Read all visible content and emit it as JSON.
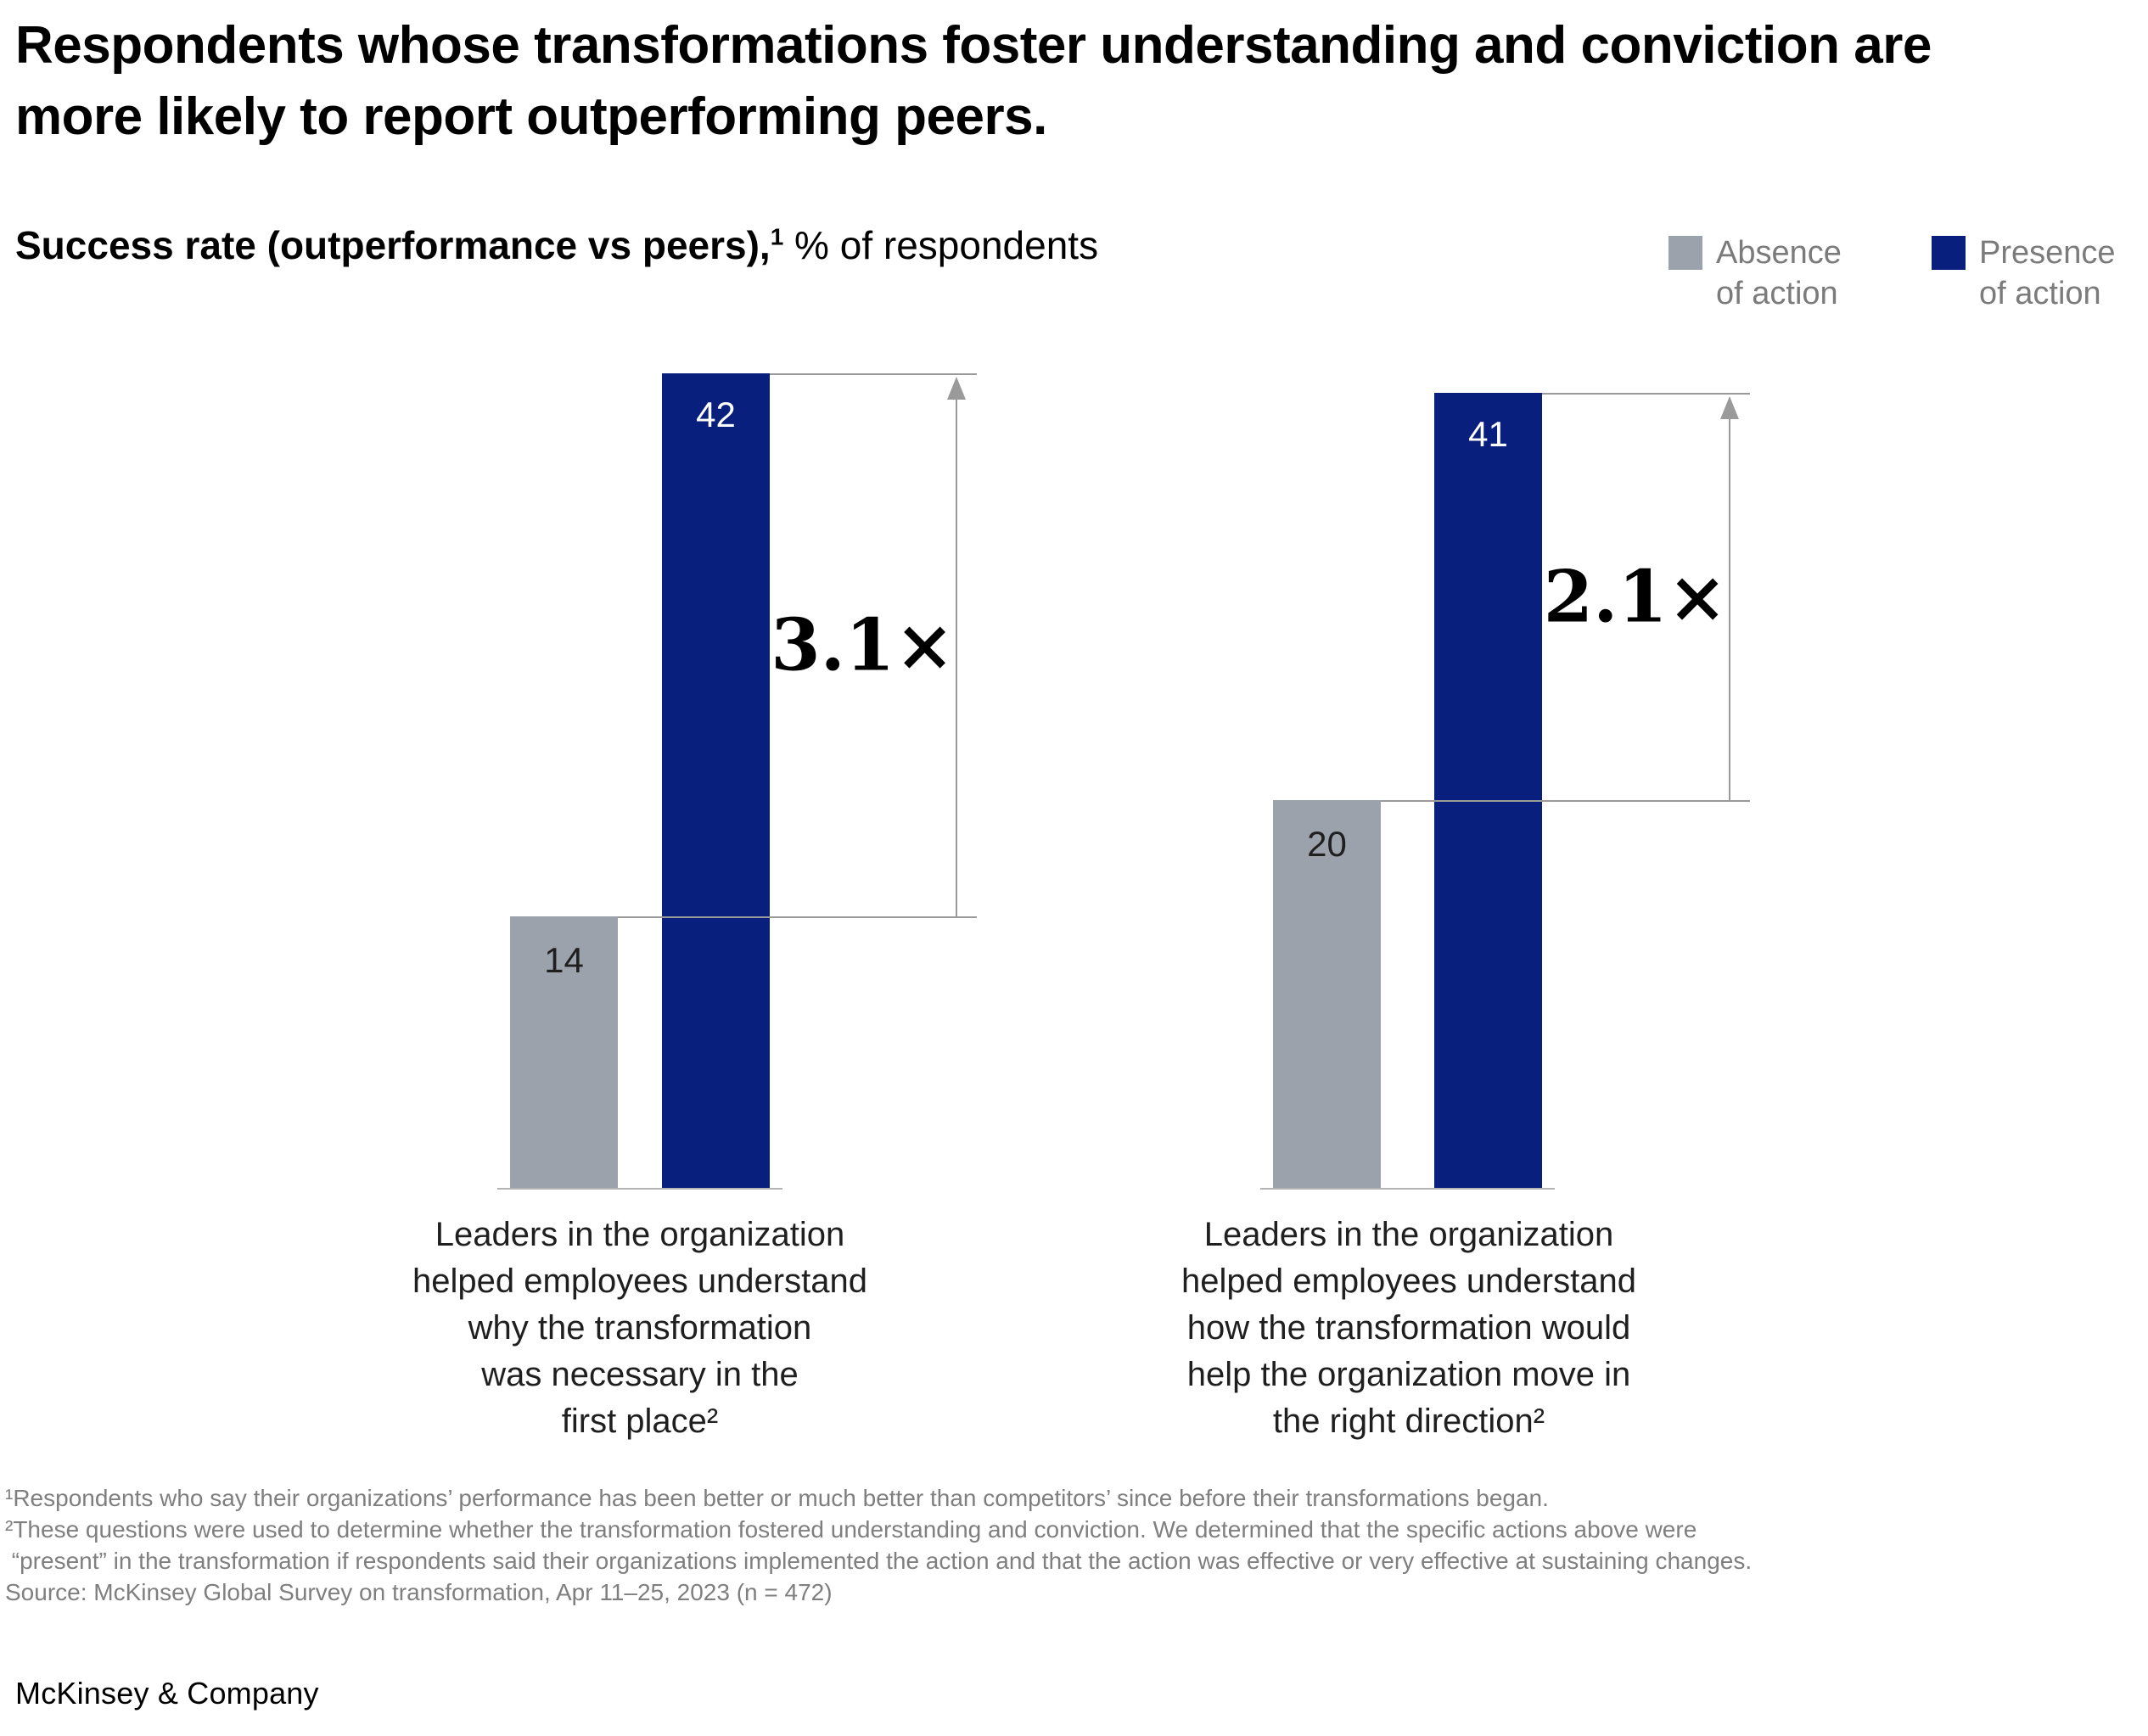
{
  "title": "Respondents whose transformations foster understanding and conviction are\nmore likely to report outperforming peers.",
  "subtitle": {
    "bold": "Success rate (outperformance vs peers),",
    "sup": "1",
    "regular": " % of respondents"
  },
  "legend": [
    {
      "label": "Absence\nof action",
      "color": "#9BA2AB"
    },
    {
      "label": "Presence\nof action",
      "color": "#081F7E"
    }
  ],
  "chart_data": [
    {
      "type": "bar",
      "title": "Success rate (outperformance vs peers), % of respondents",
      "categories": [
        "Absence of action",
        "Presence of action"
      ],
      "values": [
        14,
        42
      ],
      "multiplier": "3.1×",
      "group_label": "Leaders in the organization\nhelped employees understand\nwhy the transformation\nwas necessary in the\nfirst place²"
    },
    {
      "type": "bar",
      "title": "Success rate (outperformance vs peers), % of respondents",
      "categories": [
        "Absence of action",
        "Presence of action"
      ],
      "values": [
        20,
        41
      ],
      "multiplier": "2.1×",
      "group_label": "Leaders in the organization\nhelped employees understand\nhow the transformation would\nhelp the organization move in\nthe right direction²"
    }
  ],
  "footnotes": [
    "¹Respondents who say their organizations’ performance has been better or much better than competitors’ since before their transformations began.",
    "²These questions were used to determine whether the transformation fostered understanding and conviction. We determined that the specific actions above were",
    " “present” in the transformation if respondents said their organizations implemented the action and that the action was effective or very effective at sustaining changes.",
    "Source: McKinsey Global Survey on transformation, Apr 11–25, 2023 (n = 472)"
  ],
  "logo": "McKinsey & Company",
  "colors": {
    "absence_bar": "#9BA2AB",
    "presence_bar": "#081F7E",
    "annotation_line": "#9A9A9A",
    "baseline": "#B3B3B3",
    "secondary_text": "#7B7B7B",
    "title_text": "#000000"
  }
}
